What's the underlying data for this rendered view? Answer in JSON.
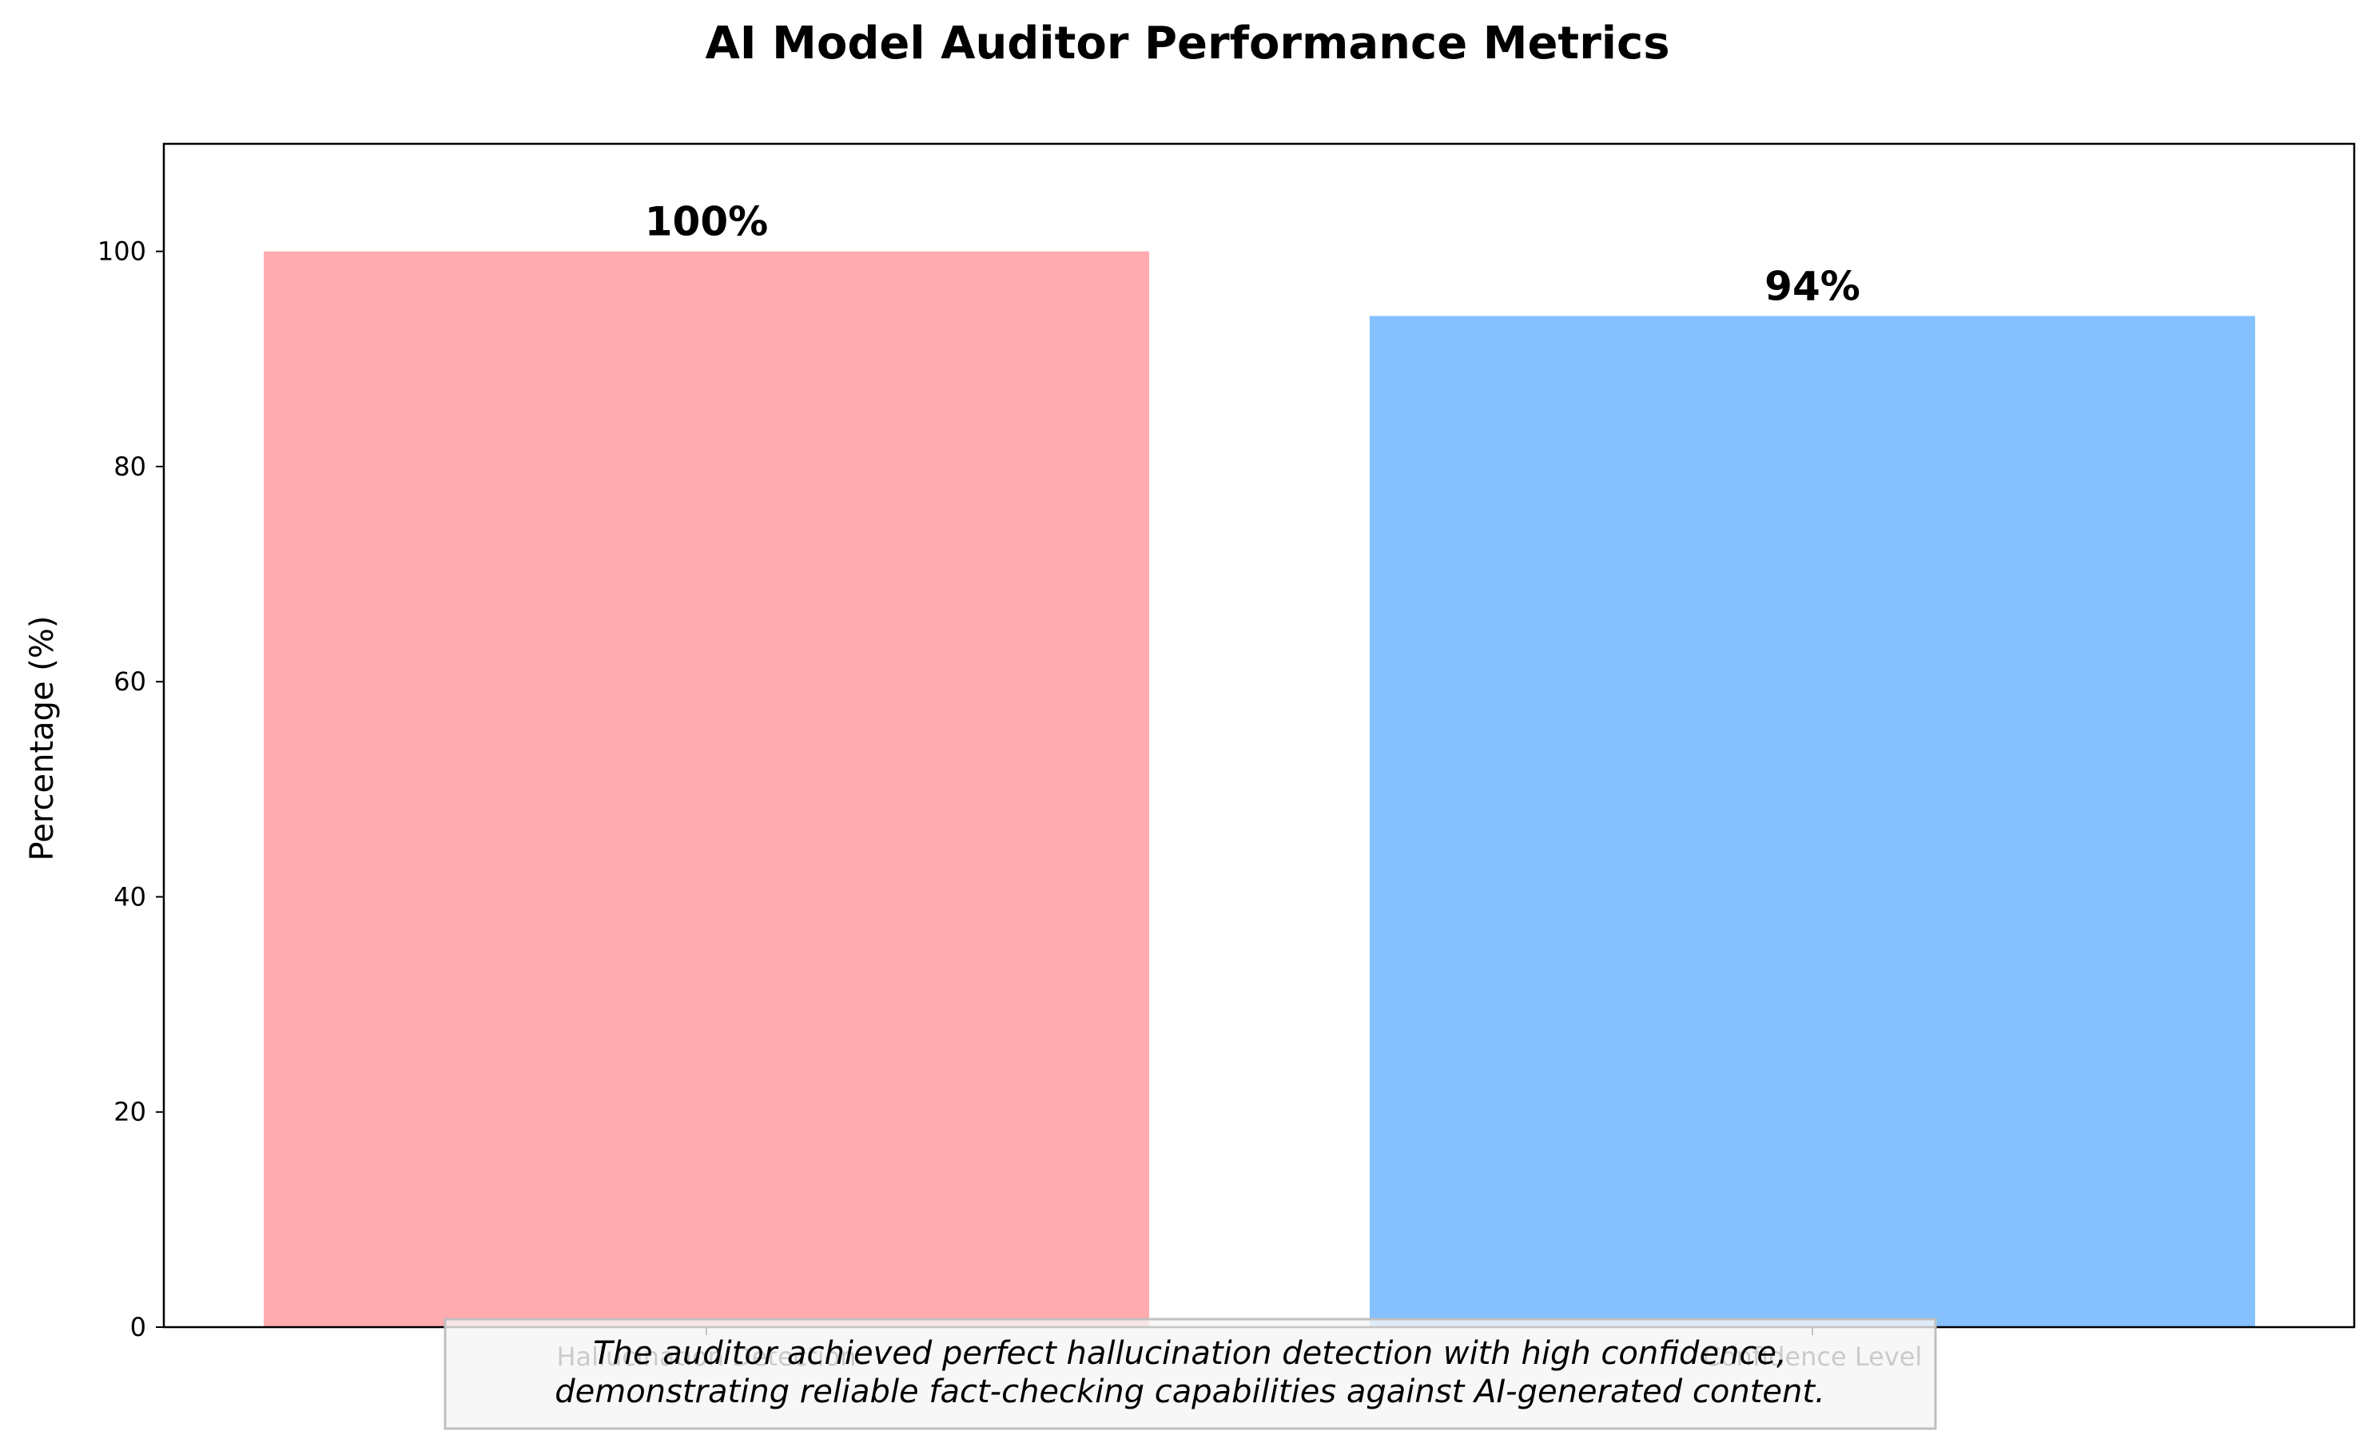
{
  "chart_data": {
    "type": "bar",
    "title": "AI Model Auditor Performance Metrics",
    "xlabel": "",
    "ylabel": "Percentage (%)",
    "categories": [
      "Hallucination Detection",
      "Confidence Level"
    ],
    "values": [
      100,
      94
    ],
    "value_labels": [
      "100%",
      "94%"
    ],
    "colors": [
      "#FFABAF",
      "#85C1FF"
    ],
    "ylim": [
      0,
      110
    ],
    "yticks": [
      0,
      20,
      40,
      60,
      80,
      100
    ],
    "grid": false,
    "legend": "none",
    "annotation": {
      "lines": [
        "The auditor achieved perfect hallucination detection with high confidence,",
        "demonstrating reliable fact-checking capabilities against AI-generated content."
      ],
      "box_color": "#F5F5F5",
      "border_color": "#BFBFBF"
    }
  }
}
